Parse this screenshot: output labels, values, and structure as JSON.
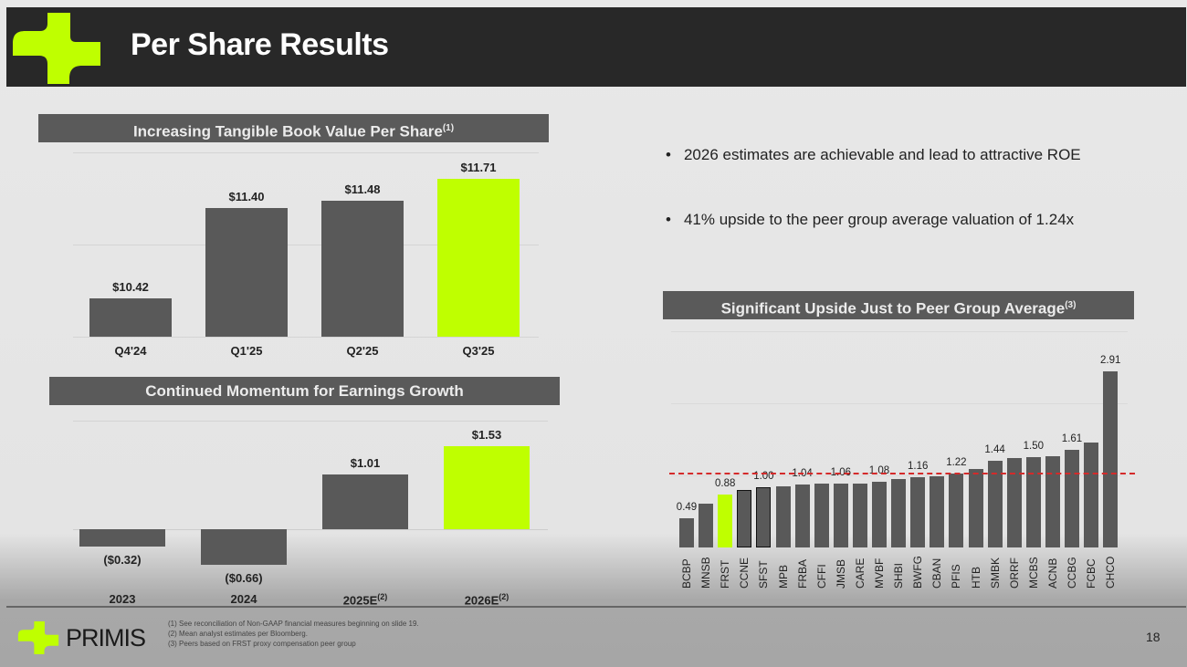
{
  "header": {
    "title": "Per Share Results"
  },
  "bullets": [
    "2026 estimates are achievable and lead to attractive ROE",
    "41% upside to the peer group average valuation of 1.24x"
  ],
  "footer": {
    "brand": "PRIMIS",
    "page": "18",
    "footnotes": [
      "(1)   See reconciliation of Non-GAAP financial measures beginning on slide 19.",
      "(2)   Mean analyst estimates per Bloomberg.",
      "(3)   Peers based on FRST proxy compensation peer group"
    ]
  },
  "colors": {
    "accent": "#bfff00",
    "bar": "#595959",
    "header": "#282828",
    "avg_line": "#d42a2a"
  },
  "chart_data": [
    {
      "type": "bar",
      "title": "Increasing Tangible Book Value Per Share",
      "title_sup": "(1)",
      "categories": [
        "Q4'24",
        "Q1'25",
        "Q2'25",
        "Q3'25"
      ],
      "values": [
        10.42,
        11.4,
        11.48,
        11.71
      ],
      "labels": [
        "$10.42",
        "$11.40",
        "$11.48",
        "$11.71"
      ],
      "highlight": "Q3'25",
      "ylim": [
        10,
        12
      ],
      "grid": true
    },
    {
      "type": "bar",
      "title": "Continued Momentum for Earnings Growth",
      "categories": [
        "2023",
        "2024",
        "2025E",
        "2026E"
      ],
      "category_sups": [
        "",
        "",
        "(2)",
        "(2)"
      ],
      "values": [
        -0.32,
        -0.66,
        1.01,
        1.53
      ],
      "labels": [
        "($0.32)",
        "($0.66)",
        "$1.01",
        "$1.53"
      ],
      "highlight": "2026E",
      "ylim": [
        -1,
        2
      ],
      "grid": true
    },
    {
      "type": "bar",
      "title": "Significant Upside Just to Peer Group Average",
      "title_sup": "(3)",
      "categories": [
        "BCBP",
        "MNSB",
        "FRST",
        "CCNE",
        "SFST",
        "MPB",
        "FRBA",
        "CFFI",
        "JMSB",
        "CARE",
        "MVBF",
        "SHBI",
        "BWFG",
        "CBAN",
        "PFIS",
        "HTB",
        "SMBK",
        "ORRF",
        "MCBS",
        "ACNB",
        "CCBG",
        "FCBC",
        "CHCO"
      ],
      "values": [
        0.49,
        0.72,
        0.88,
        0.95,
        1.0,
        1.01,
        1.04,
        1.05,
        1.06,
        1.06,
        1.08,
        1.13,
        1.16,
        1.18,
        1.22,
        1.3,
        1.44,
        1.48,
        1.5,
        1.51,
        1.61,
        1.74,
        2.91
      ],
      "labels": [
        "0.49",
        "",
        "0.88",
        "",
        "1.00",
        "",
        "1.04",
        "",
        "1.06",
        "",
        "1.08",
        "",
        "1.16",
        "",
        "1.22",
        "",
        "1.44",
        "",
        "1.50",
        "",
        "1.61",
        "",
        "2.91"
      ],
      "highlight": "FRST",
      "outlined": [
        "CCNE",
        "SFST"
      ],
      "average_line": 1.24,
      "ylim": [
        0,
        3.5
      ],
      "grid": true
    }
  ]
}
